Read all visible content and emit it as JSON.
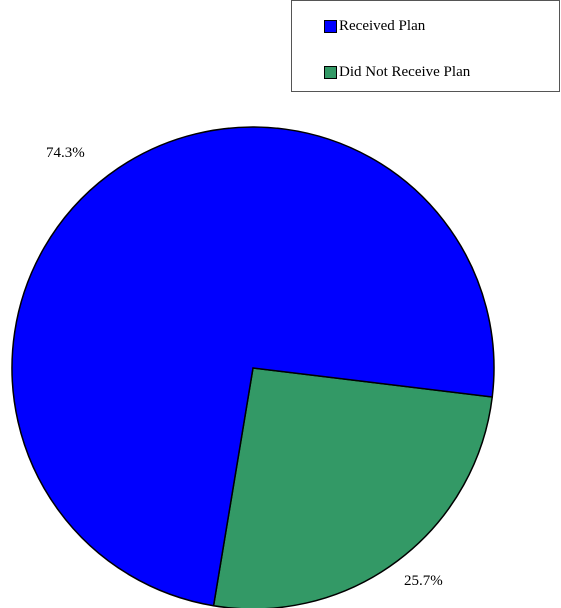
{
  "chart_data": {
    "type": "pie",
    "categories": [
      "Received Plan",
      "Did Not Receive Plan"
    ],
    "values": [
      74.3,
      25.7
    ],
    "data_labels": [
      "74.3%",
      "25.7%"
    ],
    "colors": [
      "#0000ff",
      "#339966"
    ],
    "legend_position": "top-right",
    "title": ""
  }
}
